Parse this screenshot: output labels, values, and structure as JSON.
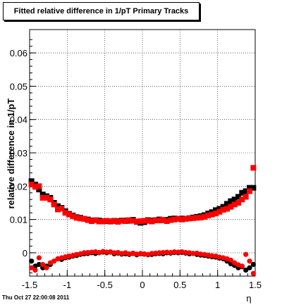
{
  "title": "Fitted relative difference in 1/pT  Primary Tracks",
  "timestamp": "Thu Oct 27 22:00:08 2011",
  "chart_data": {
    "type": "scatter",
    "title": "Fitted relative difference in 1/pT  Primary Tracks",
    "xlabel": "η",
    "ylabel": "relative difference in 1/pT",
    "xlim": [
      -1.5,
      1.5
    ],
    "ylim": [
      -0.007,
      0.067
    ],
    "grid": true,
    "x_ticks": [
      -1.5,
      -1,
      -0.5,
      0,
      0.5,
      1,
      1.5
    ],
    "x_tick_labels": [
      "-1.5",
      "-1",
      "-0.5",
      "0",
      "0.5",
      "1",
      "1.5"
    ],
    "y_ticks": [
      0,
      0.01,
      0.02,
      0.03,
      0.04,
      0.05,
      0.06
    ],
    "y_tick_labels": [
      "0",
      "0.01",
      "0.02",
      "0.03",
      "0.04",
      "0.05",
      "0.06"
    ],
    "series": [
      {
        "color": "#000000",
        "marker": "square",
        "points": [
          [
            -1.475,
            0.0215
          ],
          [
            -1.425,
            0.0205
          ],
          [
            -1.375,
            0.019
          ],
          [
            -1.325,
            0.0175
          ],
          [
            -1.275,
            0.017
          ],
          [
            -1.225,
            0.0165
          ],
          [
            -1.175,
            0.015
          ],
          [
            -1.125,
            0.014
          ],
          [
            -1.075,
            0.0135
          ],
          [
            -1.025,
            0.0125
          ],
          [
            -0.975,
            0.0117
          ],
          [
            -0.925,
            0.0112
          ],
          [
            -0.875,
            0.0107
          ],
          [
            -0.825,
            0.0105
          ],
          [
            -0.775,
            0.0102
          ],
          [
            -0.725,
            0.01
          ],
          [
            -0.675,
            0.0097
          ],
          [
            -0.625,
            0.0098
          ],
          [
            -0.575,
            0.0097
          ],
          [
            -0.525,
            0.0095
          ],
          [
            -0.475,
            0.0095
          ],
          [
            -0.425,
            0.0094
          ],
          [
            -0.375,
            0.0096
          ],
          [
            -0.325,
            0.0095
          ],
          [
            -0.275,
            0.0097
          ],
          [
            -0.225,
            0.0097
          ],
          [
            -0.175,
            0.0096
          ],
          [
            -0.125,
            0.0099
          ],
          [
            -0.075,
            0.0093
          ],
          [
            -0.025,
            0.009
          ],
          [
            0.025,
            0.0092
          ],
          [
            0.075,
            0.0098
          ],
          [
            0.125,
            0.0097
          ],
          [
            0.175,
            0.0098
          ],
          [
            0.225,
            0.01
          ],
          [
            0.275,
            0.0098
          ],
          [
            0.325,
            0.0099
          ],
          [
            0.375,
            0.0102
          ],
          [
            0.425,
            0.0103
          ],
          [
            0.475,
            0.0102
          ],
          [
            0.525,
            0.0103
          ],
          [
            0.575,
            0.0102
          ],
          [
            0.625,
            0.0104
          ],
          [
            0.675,
            0.0106
          ],
          [
            0.725,
            0.0108
          ],
          [
            0.775,
            0.011
          ],
          [
            0.825,
            0.0113
          ],
          [
            0.875,
            0.0118
          ],
          [
            0.925,
            0.0122
          ],
          [
            0.975,
            0.0128
          ],
          [
            1.025,
            0.0132
          ],
          [
            1.075,
            0.0138
          ],
          [
            1.125,
            0.0147
          ],
          [
            1.175,
            0.0155
          ],
          [
            1.225,
            0.016
          ],
          [
            1.275,
            0.0168
          ],
          [
            1.325,
            0.018
          ],
          [
            1.375,
            0.0185
          ],
          [
            1.425,
            0.0195
          ],
          [
            1.475,
            0.0195
          ]
        ]
      },
      {
        "color": "#ff0000",
        "marker": "square",
        "points": [
          [
            -1.475,
            0.0205
          ],
          [
            -1.425,
            0.0198
          ],
          [
            -1.375,
            0.02
          ],
          [
            -1.325,
            0.0165
          ],
          [
            -1.275,
            0.0165
          ],
          [
            -1.225,
            0.016
          ],
          [
            -1.175,
            0.0145
          ],
          [
            -1.125,
            0.013
          ],
          [
            -1.075,
            0.0133
          ],
          [
            -1.025,
            0.012
          ],
          [
            -0.975,
            0.0115
          ],
          [
            -0.925,
            0.011
          ],
          [
            -0.875,
            0.0105
          ],
          [
            -0.825,
            0.0103
          ],
          [
            -0.775,
            0.0102
          ],
          [
            -0.725,
            0.0098
          ],
          [
            -0.675,
            0.0095
          ],
          [
            -0.625,
            0.0098
          ],
          [
            -0.575,
            0.0094
          ],
          [
            -0.525,
            0.0094
          ],
          [
            -0.475,
            0.0096
          ],
          [
            -0.425,
            0.0095
          ],
          [
            -0.375,
            0.0095
          ],
          [
            -0.325,
            0.0093
          ],
          [
            -0.275,
            0.0096
          ],
          [
            -0.225,
            0.0095
          ],
          [
            -0.175,
            0.0098
          ],
          [
            -0.125,
            0.0096
          ],
          [
            -0.075,
            0.0094
          ],
          [
            -0.025,
            0.0095
          ],
          [
            0.025,
            0.0096
          ],
          [
            0.075,
            0.0096
          ],
          [
            0.125,
            0.0094
          ],
          [
            0.175,
            0.0097
          ],
          [
            0.225,
            0.0097
          ],
          [
            0.275,
            0.0099
          ],
          [
            0.325,
            0.0095
          ],
          [
            0.375,
            0.0098
          ],
          [
            0.425,
            0.01
          ],
          [
            0.475,
            0.0102
          ],
          [
            0.525,
            0.01
          ],
          [
            0.575,
            0.0102
          ],
          [
            0.625,
            0.0103
          ],
          [
            0.675,
            0.0104
          ],
          [
            0.725,
            0.0105
          ],
          [
            0.775,
            0.0106
          ],
          [
            0.825,
            0.0108
          ],
          [
            0.875,
            0.0112
          ],
          [
            0.925,
            0.0115
          ],
          [
            0.975,
            0.0118
          ],
          [
            1.025,
            0.0123
          ],
          [
            1.075,
            0.0129
          ],
          [
            1.125,
            0.0132
          ],
          [
            1.175,
            0.0138
          ],
          [
            1.225,
            0.0145
          ],
          [
            1.275,
            0.015
          ],
          [
            1.325,
            0.016
          ],
          [
            1.375,
            0.0168
          ],
          [
            1.425,
            0.0185
          ],
          [
            1.475,
            0.0255
          ]
        ]
      },
      {
        "color": "#000000",
        "marker": "circle",
        "points": [
          [
            -1.475,
            -0.0025
          ],
          [
            -1.425,
            -0.004
          ],
          [
            -1.375,
            -0.0035
          ],
          [
            -1.325,
            -0.0045
          ],
          [
            -1.275,
            -0.004
          ],
          [
            -1.225,
            -0.0035
          ],
          [
            -1.175,
            -0.0025
          ],
          [
            -1.125,
            -0.0018
          ],
          [
            -1.075,
            -0.002
          ],
          [
            -1.025,
            -0.0015
          ],
          [
            -0.975,
            -0.0013
          ],
          [
            -0.925,
            -0.001
          ],
          [
            -0.875,
            -0.0008
          ],
          [
            -0.825,
            -0.0005
          ],
          [
            -0.775,
            -0.0003
          ],
          [
            -0.725,
            -0.0002
          ],
          [
            -0.675,
            0.0
          ],
          [
            -0.625,
            -0.0002
          ],
          [
            -0.575,
            0.0
          ],
          [
            -0.525,
            0.0002
          ],
          [
            -0.475,
            0.0
          ],
          [
            -0.425,
            0.0002
          ],
          [
            -0.375,
            -0.0003
          ],
          [
            -0.325,
            -0.0001
          ],
          [
            -0.275,
            -0.0004
          ],
          [
            -0.225,
            -0.0003
          ],
          [
            -0.175,
            -0.0005
          ],
          [
            -0.125,
            -0.0002
          ],
          [
            -0.075,
            -0.0006
          ],
          [
            -0.025,
            -0.0003
          ],
          [
            0.025,
            -0.0004
          ],
          [
            0.075,
            -0.0006
          ],
          [
            0.125,
            -0.0005
          ],
          [
            0.175,
            -0.0003
          ],
          [
            0.225,
            -0.0002
          ],
          [
            0.275,
            -0.0003
          ],
          [
            0.325,
            0.0
          ],
          [
            0.375,
            -0.0001
          ],
          [
            0.425,
            0.0001
          ],
          [
            0.475,
            0.0
          ],
          [
            0.525,
            0.0001
          ],
          [
            0.575,
            -0.0001
          ],
          [
            0.625,
            -0.0003
          ],
          [
            0.675,
            -0.0002
          ],
          [
            0.725,
            -0.0005
          ],
          [
            0.775,
            -0.0007
          ],
          [
            0.825,
            -0.0008
          ],
          [
            0.875,
            -0.001
          ],
          [
            0.925,
            -0.0012
          ],
          [
            0.975,
            -0.0013
          ],
          [
            1.025,
            -0.0016
          ],
          [
            1.075,
            -0.0018
          ],
          [
            1.125,
            -0.0025
          ],
          [
            1.175,
            -0.0033
          ],
          [
            1.225,
            -0.0038
          ],
          [
            1.275,
            -0.0045
          ],
          [
            1.325,
            -0.0042
          ],
          [
            1.375,
            -0.0052
          ],
          [
            1.425,
            -0.0045
          ],
          [
            1.475,
            -0.0035
          ]
        ]
      },
      {
        "color": "#ff0000",
        "marker": "circle",
        "points": [
          [
            -1.475,
            -0.0045
          ],
          [
            -1.425,
            -0.0052
          ],
          [
            -1.375,
            -0.0015
          ],
          [
            -1.325,
            -0.0035
          ],
          [
            -1.275,
            -0.0045
          ],
          [
            -1.225,
            -0.003
          ],
          [
            -1.175,
            -0.0025
          ],
          [
            -1.125,
            -0.0018
          ],
          [
            -1.075,
            -0.0015
          ],
          [
            -1.025,
            -0.0012
          ],
          [
            -0.975,
            -0.001
          ],
          [
            -0.925,
            -0.0008
          ],
          [
            -0.875,
            -0.0005
          ],
          [
            -0.825,
            -0.0003
          ],
          [
            -0.775,
            0.0
          ],
          [
            -0.725,
            0.0001
          ],
          [
            -0.675,
            0.0002
          ],
          [
            -0.625,
            0.0003
          ],
          [
            -0.575,
            0.0001
          ],
          [
            -0.525,
            0.0004
          ],
          [
            -0.475,
            0.0002
          ],
          [
            -0.425,
            0.0003
          ],
          [
            -0.375,
            0.0
          ],
          [
            -0.325,
            0.0001
          ],
          [
            -0.275,
            -0.0002
          ],
          [
            -0.225,
            0.0
          ],
          [
            -0.175,
            -0.0003
          ],
          [
            -0.125,
            -0.0001
          ],
          [
            -0.075,
            -0.0004
          ],
          [
            -0.025,
            -0.0002
          ],
          [
            0.025,
            -0.0003
          ],
          [
            0.075,
            -0.0005
          ],
          [
            0.125,
            -0.0002
          ],
          [
            0.175,
            -0.0001
          ],
          [
            0.225,
            0.0
          ],
          [
            0.275,
            0.0001
          ],
          [
            0.325,
            0.0002
          ],
          [
            0.375,
            0.0001
          ],
          [
            0.425,
            0.0003
          ],
          [
            0.475,
            0.0002
          ],
          [
            0.525,
            0.0003
          ],
          [
            0.575,
            0.0001
          ],
          [
            0.625,
            0.0
          ],
          [
            0.675,
            -0.0002
          ],
          [
            0.725,
            -0.0001
          ],
          [
            0.775,
            -0.0004
          ],
          [
            0.825,
            -0.0005
          ],
          [
            0.875,
            -0.0007
          ],
          [
            0.925,
            -0.0009
          ],
          [
            0.975,
            -0.001
          ],
          [
            1.025,
            -0.0013
          ],
          [
            1.075,
            -0.0015
          ],
          [
            1.125,
            -0.0018
          ],
          [
            1.175,
            -0.0022
          ],
          [
            1.225,
            -0.003
          ],
          [
            1.275,
            -0.0036
          ],
          [
            1.325,
            -0.004
          ],
          [
            1.375,
            -0.0005
          ],
          [
            1.425,
            -0.0025
          ],
          [
            1.475,
            -0.0062
          ]
        ]
      }
    ]
  }
}
